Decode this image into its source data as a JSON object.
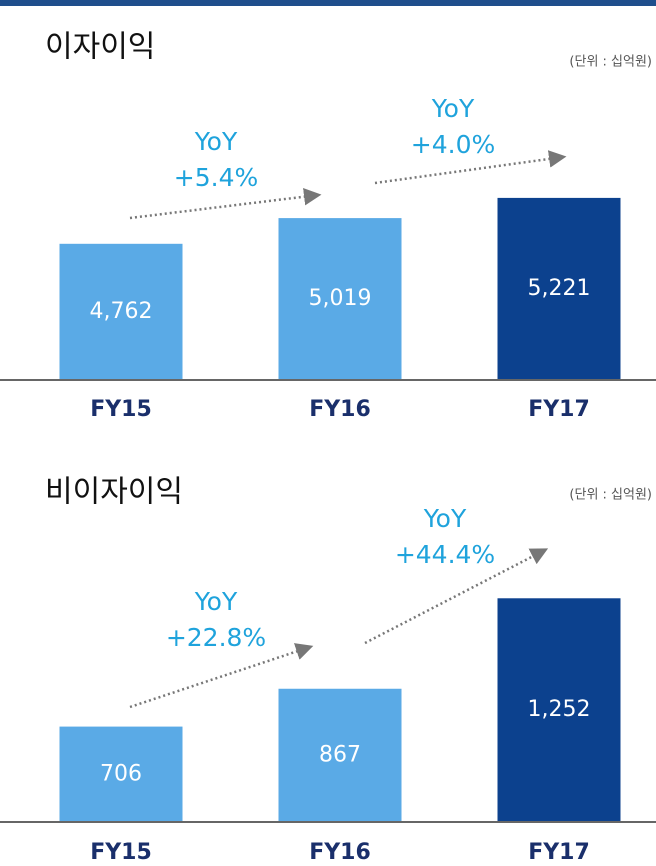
{
  "chart_data": [
    {
      "type": "bar",
      "title": "이자이익",
      "unit": "(단위 : 십억원)",
      "categories": [
        "FY15",
        "FY16",
        "FY17"
      ],
      "values": [
        4762,
        5019,
        5221
      ],
      "value_labels": [
        "4,762",
        "5,019",
        "5,221"
      ],
      "colors": [
        "#5aaae6",
        "#5aaae6",
        "#0c418e"
      ],
      "ylim": [
        3400,
        6200
      ],
      "annotations": [
        {
          "lines": [
            "YoY",
            "+5.4%"
          ]
        },
        {
          "lines": [
            "YoY",
            "+4.0%"
          ]
        }
      ]
    },
    {
      "type": "bar",
      "title": "비이자이익",
      "unit": "(단위 : 십억원)",
      "categories": [
        "FY15",
        "FY16",
        "FY17"
      ],
      "values": [
        706,
        867,
        1252
      ],
      "value_labels": [
        "706",
        "867",
        "1,252"
      ],
      "colors": [
        "#5aaae6",
        "#5aaae6",
        "#0c418e"
      ],
      "ylim": [
        300,
        1500
      ],
      "annotations": [
        {
          "lines": [
            "YoY",
            "+22.8%"
          ]
        },
        {
          "lines": [
            "YoY",
            "+44.4%"
          ]
        }
      ]
    }
  ]
}
